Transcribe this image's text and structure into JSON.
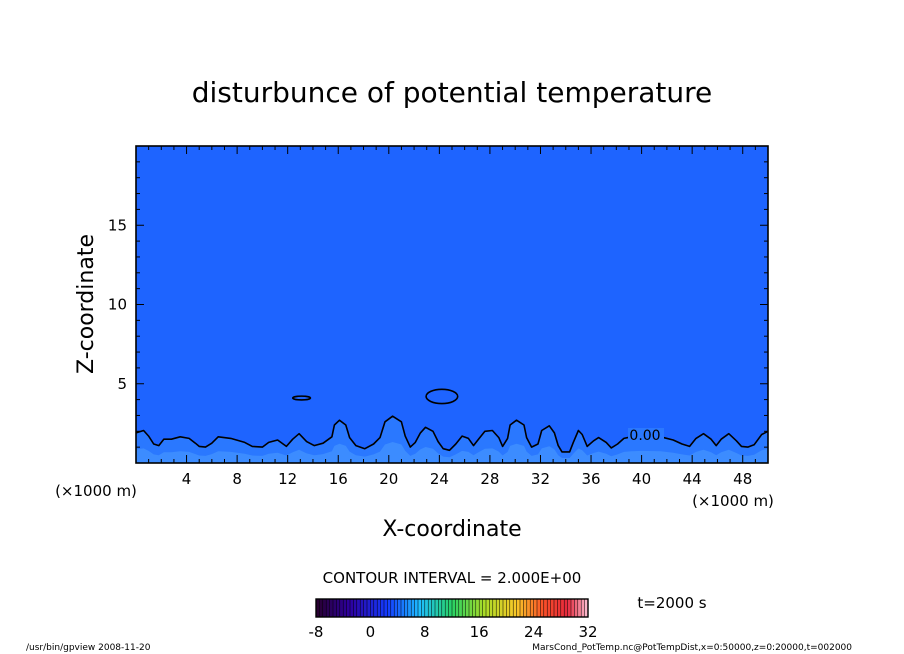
{
  "chart_data": {
    "type": "heatmap",
    "title": "disturbunce of potential temperature",
    "xlabel": "X-coordinate",
    "ylabel": "Z-coordinate",
    "x_unit": "(×1000 m)",
    "y_unit": "(×1000 m)",
    "xlim": [
      0,
      50
    ],
    "ylim": [
      0,
      20
    ],
    "x_ticks": [
      4,
      8,
      12,
      16,
      20,
      24,
      28,
      32,
      36,
      40,
      44,
      48
    ],
    "y_ticks": [
      5,
      10,
      15
    ],
    "field_color": "#1e64ff",
    "contour_label": "0.00",
    "contour_zero_line": [
      [
        0,
        1.9
      ],
      [
        0.6,
        2.05
      ],
      [
        1.0,
        1.7
      ],
      [
        1.4,
        1.2
      ],
      [
        1.8,
        1.1
      ],
      [
        2.2,
        1.5
      ],
      [
        2.8,
        1.5
      ],
      [
        3.5,
        1.65
      ],
      [
        4.2,
        1.55
      ],
      [
        4.7,
        1.25
      ],
      [
        5.0,
        1.05
      ],
      [
        5.5,
        1.0
      ],
      [
        6.0,
        1.25
      ],
      [
        6.5,
        1.65
      ],
      [
        7.5,
        1.55
      ],
      [
        8.6,
        1.3
      ],
      [
        9.2,
        1.05
      ],
      [
        10.0,
        1.0
      ],
      [
        10.5,
        1.3
      ],
      [
        11.2,
        1.45
      ],
      [
        11.9,
        1.05
      ],
      [
        12.4,
        1.5
      ],
      [
        12.9,
        1.85
      ],
      [
        13.5,
        1.35
      ],
      [
        14.1,
        1.1
      ],
      [
        14.8,
        1.25
      ],
      [
        15.5,
        1.65
      ],
      [
        15.7,
        2.4
      ],
      [
        16.1,
        2.7
      ],
      [
        16.6,
        2.4
      ],
      [
        16.9,
        1.6
      ],
      [
        17.4,
        1.1
      ],
      [
        18.1,
        0.9
      ],
      [
        18.8,
        1.2
      ],
      [
        19.3,
        1.6
      ],
      [
        19.7,
        2.6
      ],
      [
        20.3,
        2.95
      ],
      [
        21.0,
        2.6
      ],
      [
        21.3,
        1.7
      ],
      [
        21.7,
        1.0
      ],
      [
        22.1,
        1.3
      ],
      [
        22.5,
        1.9
      ],
      [
        22.9,
        2.25
      ],
      [
        23.5,
        2.0
      ],
      [
        23.9,
        1.35
      ],
      [
        24.3,
        0.9
      ],
      [
        24.8,
        0.8
      ],
      [
        25.3,
        1.2
      ],
      [
        25.8,
        1.7
      ],
      [
        26.3,
        1.55
      ],
      [
        26.7,
        1.1
      ],
      [
        27.1,
        1.5
      ],
      [
        27.6,
        2.0
      ],
      [
        28.2,
        2.05
      ],
      [
        28.7,
        1.6
      ],
      [
        29.0,
        1.05
      ],
      [
        29.4,
        1.55
      ],
      [
        29.6,
        2.4
      ],
      [
        30.1,
        2.7
      ],
      [
        30.7,
        2.4
      ],
      [
        30.9,
        1.6
      ],
      [
        31.3,
        1.0
      ],
      [
        31.8,
        1.2
      ],
      [
        32.1,
        2.05
      ],
      [
        32.7,
        2.35
      ],
      [
        33.1,
        1.9
      ],
      [
        33.4,
        1.1
      ],
      [
        33.7,
        0.7
      ],
      [
        34.3,
        0.7
      ],
      [
        34.6,
        1.3
      ],
      [
        35.0,
        2.05
      ],
      [
        35.3,
        1.8
      ],
      [
        35.7,
        1.05
      ],
      [
        36.2,
        1.4
      ],
      [
        36.6,
        1.6
      ],
      [
        37.2,
        1.3
      ],
      [
        37.6,
        0.95
      ],
      [
        38.1,
        1.2
      ],
      [
        38.6,
        1.55
      ],
      [
        39.2,
        1.65
      ],
      [
        40.0,
        1.7
      ],
      [
        41.5,
        1.65
      ],
      [
        42.5,
        1.45
      ],
      [
        43.2,
        1.2
      ],
      [
        43.8,
        1.05
      ],
      [
        44.3,
        1.55
      ],
      [
        44.9,
        1.85
      ],
      [
        45.5,
        1.5
      ],
      [
        45.9,
        1.1
      ],
      [
        46.3,
        1.5
      ],
      [
        46.9,
        1.85
      ],
      [
        47.5,
        1.4
      ],
      [
        47.9,
        1.05
      ],
      [
        48.4,
        1.0
      ],
      [
        48.9,
        1.15
      ],
      [
        49.5,
        1.8
      ],
      [
        50,
        2.0
      ]
    ],
    "closed_contours": [
      {
        "x_center": 13.1,
        "z_center": 4.1,
        "x_halfwidth": 0.7,
        "z_halfheight": 0.12
      },
      {
        "x_center": 24.2,
        "z_center": 4.2,
        "x_halfwidth": 1.25,
        "z_halfheight": 0.45
      }
    ],
    "colorbar": {
      "ticks": [
        "-8",
        "0",
        "8",
        "16",
        "24",
        "32"
      ],
      "min": -8,
      "max": 32,
      "interval": 0.5
    }
  },
  "labels": {
    "contour_interval": "CONTOUR INTERVAL = 2.000E+00",
    "time": "t=2000 s",
    "footer_left": "/usr/bin/gpview   2008-11-20",
    "footer_right": "MarsCond_PotTemp.nc@PotTempDist,x=0:50000,z=0:20000,t=002000"
  }
}
